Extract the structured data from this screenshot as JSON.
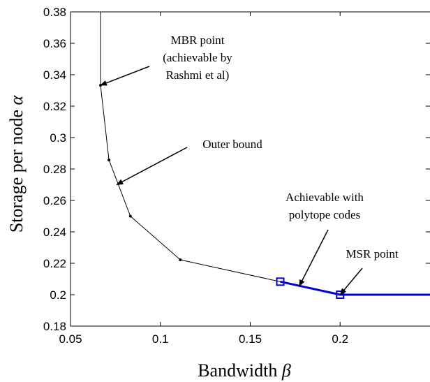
{
  "chart_data": {
    "type": "line",
    "xlabel": "Bandwidth",
    "xlabel_symbol": "β",
    "ylabel": "Storage per node",
    "ylabel_symbol": "α",
    "xlim": [
      0.05,
      0.25
    ],
    "ylim": [
      0.18,
      0.38
    ],
    "x_ticks": [
      0.05,
      0.1,
      0.15,
      0.2
    ],
    "x_tick_labels": [
      "0.05",
      "0.1",
      "0.15",
      "0.2"
    ],
    "y_ticks": [
      0.18,
      0.2,
      0.22,
      0.24,
      0.26,
      0.28,
      0.3,
      0.32,
      0.34,
      0.36,
      0.38
    ],
    "y_tick_labels": [
      "0.18",
      "0.2",
      "0.22",
      "0.24",
      "0.26",
      "0.28",
      "0.3",
      "0.32",
      "0.34",
      "0.36",
      "0.38"
    ],
    "grid": false,
    "series": [
      {
        "color": "#000000",
        "marker": "dot",
        "points": [
          [
            0.0667,
            0.38
          ],
          [
            0.0667,
            0.3333
          ],
          [
            0.0714,
            0.2857
          ],
          [
            0.0833,
            0.25
          ],
          [
            0.1111,
            0.2222
          ],
          [
            0.1667,
            0.2083
          ],
          [
            0.2,
            0.2
          ],
          [
            0.25,
            0.2
          ]
        ]
      },
      {
        "color": "#0000dd",
        "marker": "square",
        "points": [
          [
            0.1667,
            0.2083
          ],
          [
            0.2,
            0.2
          ],
          [
            0.25,
            0.2
          ]
        ],
        "marked_points": [
          [
            0.1667,
            0.2083
          ],
          [
            0.2,
            0.2
          ]
        ]
      }
    ],
    "annotations": [
      {
        "lines": [
          "MBR point",
          "(achievable by",
          "Rashmi et al)"
        ],
        "arrow_to": [
          0.0667,
          0.3333
        ]
      },
      {
        "lines": [
          "Outer bound"
        ],
        "arrow_to": [
          0.0757,
          0.27
        ]
      },
      {
        "lines": [
          "Achievable with",
          "polytope codes"
        ],
        "arrow_to": [
          0.1773,
          0.2055
        ]
      },
      {
        "lines": [
          "MSR point"
        ],
        "arrow_to": [
          0.2,
          0.2
        ]
      }
    ]
  }
}
